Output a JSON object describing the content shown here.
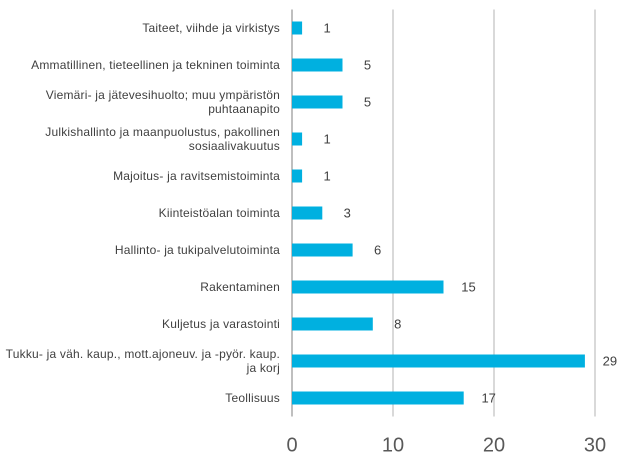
{
  "chart_data": {
    "type": "bar",
    "orientation": "horizontal",
    "categories": [
      "Taiteet, viihde ja virkistys",
      "Ammatillinen, tieteellinen ja tekninen toiminta",
      "Viemäri- ja jätevesihuolto; muu ympäristön puhtaanapito",
      "Julkishallinto ja maanpuolustus, pakollinen sosiaalivakuutus",
      "Majoitus- ja ravitsemistoiminta",
      "Kiinteistöalan toiminta",
      "Hallinto- ja tukipalvelutoiminta",
      "Rakentaminen",
      "Kuljetus ja varastointi",
      "Tukku- ja väh. kaup., mott.ajoneuv. ja -pyör. kaup. ja korj",
      "Teollisuus"
    ],
    "values": [
      1,
      5,
      5,
      1,
      1,
      3,
      6,
      15,
      8,
      29,
      17
    ],
    "color": "#00b0e0",
    "xlim": [
      0,
      30
    ],
    "xticks": [
      0,
      10,
      20,
      30
    ],
    "grid": true
  }
}
